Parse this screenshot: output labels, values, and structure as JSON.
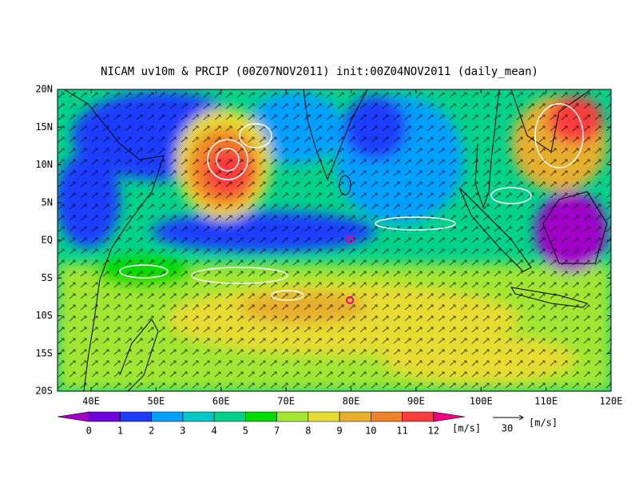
{
  "title": "NICAM uv10m & PRCIP (00Z07NOV2011) init:00Z04NOV2011 (daily_mean)",
  "map": {
    "lat_labels": [
      "20N",
      "15N",
      "10N",
      "5N",
      "EQ",
      "5S",
      "10S",
      "15S",
      "20S"
    ],
    "lon_labels": [
      "40E",
      "50E",
      "60E",
      "70E",
      "80E",
      "90E",
      "100E",
      "110E",
      "120E"
    ]
  },
  "colorbar": {
    "colors": [
      "#a000c8",
      "#6e00dc",
      "#1e3cff",
      "#00a0ff",
      "#00c8c8",
      "#00d28c",
      "#00dc00",
      "#a0e632",
      "#e6dc32",
      "#e6af2d",
      "#f08228",
      "#fa3c3c",
      "#f00082"
    ],
    "labels": [
      0,
      1,
      2,
      3,
      4,
      5,
      7,
      8,
      9,
      10,
      11,
      12
    ],
    "unit": "[m/s]"
  },
  "reference_vector": {
    "value": 30,
    "unit": "[m/s]"
  }
}
